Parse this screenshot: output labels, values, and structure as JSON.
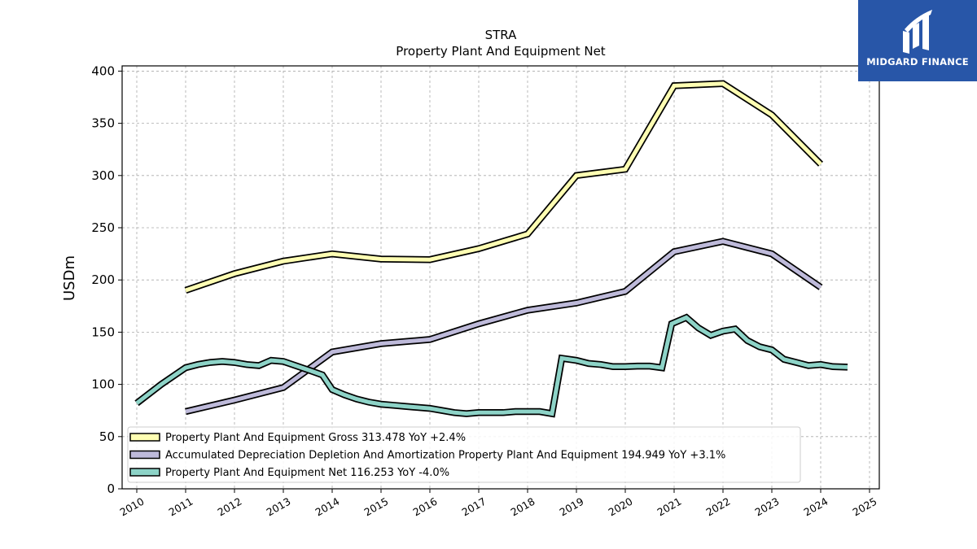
{
  "chart_data": {
    "type": "line",
    "title": "STRA",
    "subtitle": "Property Plant And Equipment Net",
    "ylabel": "USDm",
    "xlabel": "",
    "xlim": [
      2009.7,
      2025.2
    ],
    "ylim": [
      0,
      405
    ],
    "x_ticks": [
      "2010",
      "2011",
      "2012",
      "2013",
      "2014",
      "2015",
      "2016",
      "2017",
      "2018",
      "2019",
      "2020",
      "2021",
      "2022",
      "2023",
      "2024",
      "2025"
    ],
    "y_ticks": [
      0,
      50,
      100,
      150,
      200,
      250,
      300,
      350,
      400
    ],
    "grid": true,
    "legend_position": "lower-left",
    "series": [
      {
        "name": "Property Plant And Equipment Gross  313.478 YoY +2.4%",
        "color": "#ffffb3",
        "points": [
          [
            2011.0,
            190
          ],
          [
            2012.0,
            206
          ],
          [
            2013.0,
            218
          ],
          [
            2014.0,
            225
          ],
          [
            2015.0,
            220
          ],
          [
            2016.0,
            219.5
          ],
          [
            2017.0,
            230
          ],
          [
            2018.0,
            244
          ],
          [
            2019.0,
            300
          ],
          [
            2020.0,
            306
          ],
          [
            2021.0,
            386
          ],
          [
            2022.0,
            388
          ],
          [
            2023.0,
            358
          ],
          [
            2024.0,
            311
          ]
        ]
      },
      {
        "name": "Accumulated Depreciation Depletion And Amortization Property Plant And Equipment  194.949 YoY +3.1%",
        "color": "#bebada",
        "points": [
          [
            2011.0,
            74
          ],
          [
            2012.0,
            85
          ],
          [
            2013.0,
            97
          ],
          [
            2014.0,
            131
          ],
          [
            2015.0,
            139
          ],
          [
            2016.0,
            143
          ],
          [
            2017.0,
            158
          ],
          [
            2018.0,
            171
          ],
          [
            2019.0,
            178
          ],
          [
            2020.0,
            189
          ],
          [
            2021.0,
            227
          ],
          [
            2022.0,
            237
          ],
          [
            2023.0,
            225
          ],
          [
            2024.0,
            193
          ]
        ]
      },
      {
        "name": "Property Plant And Equipment Net  116.253 YoY -4.0%",
        "color": "#8dd3c7",
        "points": [
          [
            2010.0,
            82
          ],
          [
            2010.5,
            100
          ],
          [
            2011.0,
            116
          ],
          [
            2011.25,
            119
          ],
          [
            2011.5,
            121
          ],
          [
            2011.75,
            122
          ],
          [
            2012.0,
            121
          ],
          [
            2012.25,
            119
          ],
          [
            2012.5,
            118
          ],
          [
            2012.75,
            123
          ],
          [
            2013.0,
            122
          ],
          [
            2013.25,
            118
          ],
          [
            2013.5,
            114
          ],
          [
            2013.8,
            109
          ],
          [
            2014.0,
            95
          ],
          [
            2014.25,
            90
          ],
          [
            2014.5,
            86
          ],
          [
            2014.75,
            83
          ],
          [
            2015.0,
            81
          ],
          [
            2015.25,
            80
          ],
          [
            2015.5,
            79
          ],
          [
            2015.75,
            78
          ],
          [
            2016.0,
            77
          ],
          [
            2016.25,
            75
          ],
          [
            2016.5,
            73
          ],
          [
            2016.75,
            72
          ],
          [
            2017.0,
            73
          ],
          [
            2017.25,
            73
          ],
          [
            2017.5,
            73
          ],
          [
            2017.75,
            74
          ],
          [
            2018.0,
            74
          ],
          [
            2018.25,
            74
          ],
          [
            2018.5,
            72
          ],
          [
            2018.7,
            125
          ],
          [
            2019.0,
            123
          ],
          [
            2019.25,
            120
          ],
          [
            2019.5,
            119
          ],
          [
            2019.75,
            117
          ],
          [
            2020.0,
            117
          ],
          [
            2020.25,
            117.5
          ],
          [
            2020.5,
            117.5
          ],
          [
            2020.75,
            116
          ],
          [
            2020.95,
            158
          ],
          [
            2021.25,
            164
          ],
          [
            2021.5,
            154
          ],
          [
            2021.75,
            147
          ],
          [
            2022.0,
            151
          ],
          [
            2022.25,
            153
          ],
          [
            2022.5,
            142
          ],
          [
            2022.75,
            136
          ],
          [
            2023.0,
            133
          ],
          [
            2023.25,
            124
          ],
          [
            2023.5,
            121
          ],
          [
            2023.75,
            118
          ],
          [
            2024.0,
            119
          ],
          [
            2024.25,
            117
          ],
          [
            2024.55,
            116.5
          ]
        ]
      }
    ]
  },
  "logo": {
    "text": "MIDGARD FINANCE",
    "background": "#2856a8"
  }
}
